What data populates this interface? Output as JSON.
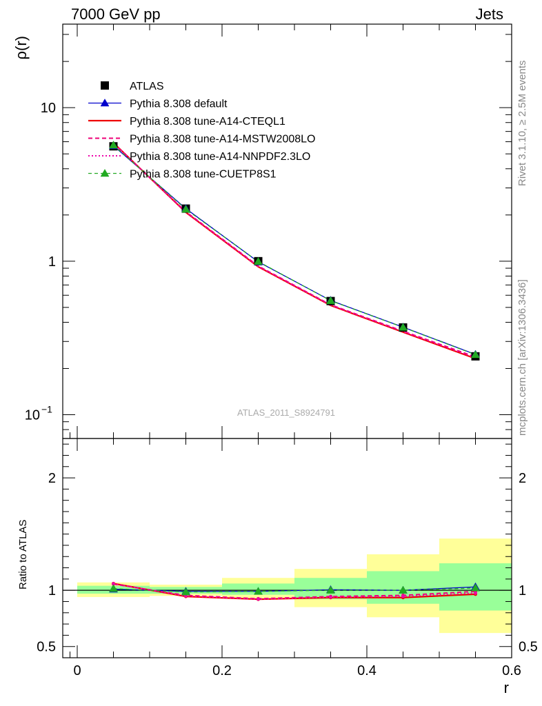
{
  "header": {
    "left_title": "7000 GeV pp",
    "right_title": "Jets"
  },
  "side_labels": {
    "rivet": "Rivet 3.1.10, ≥ 2.5M events",
    "mcplots": "mcplots.cern.ch [arXiv:1306.3436]"
  },
  "analysis_label": "ATLAS_2011_S8924791",
  "chart_data": [
    {
      "type": "line",
      "panel": "main",
      "ylabel": "ρ(r)",
      "yscale": "log",
      "ylim": [
        0.07,
        35
      ],
      "xlim": [
        -0.02,
        0.6
      ],
      "yticks": [
        {
          "value": 0.1,
          "base": "10",
          "exp": "−1"
        },
        {
          "value": 1,
          "base": "1",
          "exp": ""
        },
        {
          "value": 10,
          "base": "10",
          "exp": ""
        }
      ],
      "x": [
        0.05,
        0.15,
        0.25,
        0.35,
        0.45,
        0.55
      ],
      "data": {
        "name": "ATLAS",
        "values": [
          5.6,
          2.2,
          1.0,
          0.55,
          0.37,
          0.24
        ],
        "color": "#000000"
      },
      "series": [
        {
          "name": "Pythia 8.308 default",
          "values": [
            5.65,
            2.2,
            0.99,
            0.555,
            0.372,
            0.247
          ],
          "color": "#0000cc",
          "dash": "",
          "width": 1.3,
          "marker": "triangle"
        },
        {
          "name": "Pythia 8.308 tune-A14-CTEQL1",
          "values": [
            5.9,
            2.08,
            0.92,
            0.515,
            0.345,
            0.232
          ],
          "color": "#ee0000",
          "dash": "",
          "width": 2.2,
          "marker": "none"
        },
        {
          "name": "Pythia 8.308 tune-A14-MSTW2008LO",
          "values": [
            5.85,
            2.1,
            0.93,
            0.52,
            0.35,
            0.238
          ],
          "color": "#ee0077",
          "dash": "6,4",
          "width": 2.0,
          "marker": "none"
        },
        {
          "name": "Pythia 8.308 tune-A14-NNPDF2.3LO",
          "values": [
            5.88,
            2.09,
            0.925,
            0.518,
            0.348,
            0.235
          ],
          "color": "#ee00aa",
          "dash": "2,3",
          "width": 2.0,
          "marker": "none"
        },
        {
          "name": "Pythia 8.308 tune-CUETP8S1",
          "values": [
            5.7,
            2.18,
            0.995,
            0.553,
            0.371,
            0.246
          ],
          "color": "#22aa22",
          "dash": "5,4",
          "width": 1.3,
          "marker": "triangle"
        }
      ],
      "legend_placement": "top-left"
    },
    {
      "type": "line",
      "panel": "ratio",
      "ylabel": "Ratio to ATLAS",
      "xlabel": "r",
      "ylim": [
        0.4,
        2.35
      ],
      "xlim": [
        -0.02,
        0.6
      ],
      "yticks": [
        0.5,
        1,
        2
      ],
      "xticks": [
        0,
        0.2,
        0.4,
        0.6
      ],
      "xtick_labels": [
        "0",
        "0.2",
        "0.4",
        "0.6"
      ],
      "bands": [
        {
          "x0": 0.0,
          "x1": 0.1,
          "y_lo": 0.94,
          "y_hi": 1.07,
          "g_lo": 0.97,
          "g_hi": 1.04
        },
        {
          "x0": 0.1,
          "x1": 0.2,
          "y_lo": 0.95,
          "y_hi": 1.05,
          "g_lo": 0.97,
          "g_hi": 1.03
        },
        {
          "x0": 0.2,
          "x1": 0.3,
          "y_lo": 0.93,
          "y_hi": 1.11,
          "g_lo": 0.96,
          "g_hi": 1.06
        },
        {
          "x0": 0.3,
          "x1": 0.4,
          "y_lo": 0.85,
          "y_hi": 1.19,
          "g_lo": 0.92,
          "g_hi": 1.11
        },
        {
          "x0": 0.4,
          "x1": 0.5,
          "y_lo": 0.76,
          "y_hi": 1.32,
          "g_lo": 0.88,
          "g_hi": 1.17
        },
        {
          "x0": 0.5,
          "x1": 0.6,
          "y_lo": 0.62,
          "y_hi": 1.46,
          "g_lo": 0.82,
          "g_hi": 1.24
        }
      ],
      "x": [
        0.05,
        0.15,
        0.25,
        0.35,
        0.45,
        0.55
      ],
      "series": [
        {
          "name": "Pythia 8.308 default",
          "values": [
            1.01,
            0.99,
            0.99,
            1.005,
            1.0,
            1.03
          ],
          "color": "#0000cc",
          "dash": "",
          "width": 1.3,
          "marker": "triangle"
        },
        {
          "name": "Pythia 8.308 tune-A14-CTEQL1",
          "values": [
            1.06,
            0.945,
            0.92,
            0.935,
            0.935,
            0.965
          ],
          "color": "#ee0000",
          "dash": "",
          "width": 2.2,
          "marker": "dot"
        },
        {
          "name": "Pythia 8.308 tune-A14-MSTW2008LO",
          "values": [
            1.055,
            0.955,
            0.925,
            0.945,
            0.955,
            0.99
          ],
          "color": "#ee0077",
          "dash": "6,4",
          "width": 2.0,
          "marker": "dot"
        },
        {
          "name": "Pythia 8.308 tune-A14-NNPDF2.3LO",
          "values": [
            1.058,
            0.95,
            0.922,
            0.94,
            0.945,
            0.975
          ],
          "color": "#ee00aa",
          "dash": "2,3",
          "width": 2.0,
          "marker": "dot"
        },
        {
          "name": "Pythia 8.308 tune-CUETP8S1",
          "values": [
            1.015,
            0.985,
            0.99,
            1.0,
            1.0,
            1.02
          ],
          "color": "#22aa22",
          "dash": "5,4",
          "width": 1.3,
          "marker": "triangle"
        }
      ]
    }
  ]
}
